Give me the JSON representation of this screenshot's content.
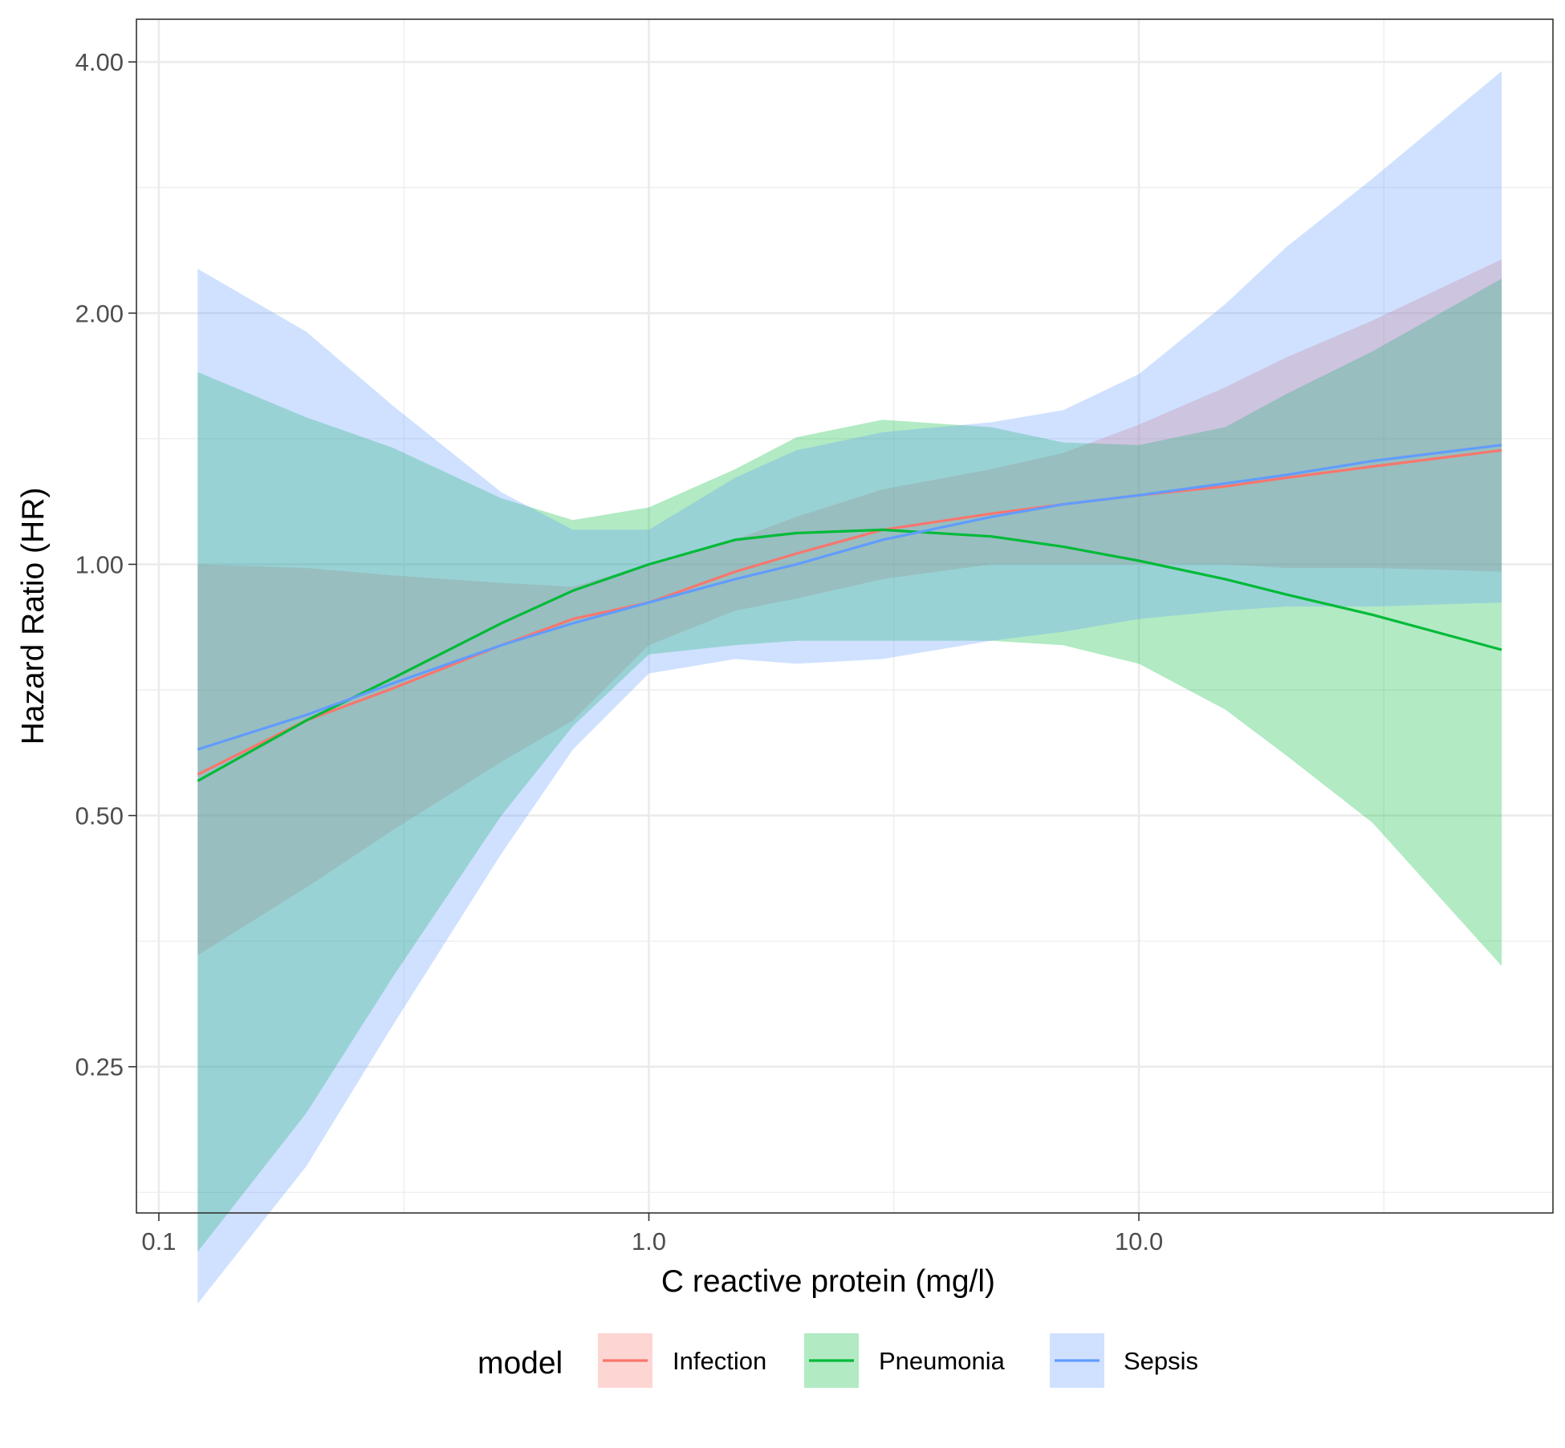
{
  "chart_data": {
    "type": "line",
    "title": "",
    "xlabel": "C reactive protein (mg/l)",
    "ylabel": "Hazard Ratio (HR)",
    "x_scale": "log10",
    "y_scale": "log2",
    "xlim": [
      0.09,
      70
    ],
    "ylim": [
      0.167,
      4.5
    ],
    "x_ticks": [
      0.1,
      1.0,
      10.0
    ],
    "x_tick_labels": [
      "0.1",
      "1.0",
      "10.0"
    ],
    "y_ticks": [
      0.25,
      0.5,
      1.0,
      2.0,
      4.0
    ],
    "y_tick_labels": [
      "0.25",
      "0.50",
      "1.00",
      "2.00",
      "4.00"
    ],
    "grid": true,
    "legend": {
      "title": "model",
      "position": "bottom",
      "entries": [
        "Infection",
        "Pneumonia",
        "Sepsis"
      ]
    },
    "series": [
      {
        "name": "Infection",
        "color": "#F8766D",
        "x": [
          0.12,
          0.2,
          0.3,
          0.5,
          0.7,
          1.0,
          1.5,
          2.0,
          3.0,
          5.0,
          7.0,
          10.0,
          15.0,
          20.0,
          30.0,
          55.0
        ],
        "y": [
          0.56,
          0.65,
          0.71,
          0.8,
          0.86,
          0.9,
          0.98,
          1.03,
          1.1,
          1.15,
          1.18,
          1.21,
          1.24,
          1.27,
          1.31,
          1.37
        ],
        "lower": [
          0.34,
          0.41,
          0.48,
          0.58,
          0.65,
          0.8,
          0.88,
          0.91,
          0.96,
          1.0,
          1.0,
          1.0,
          1.0,
          0.99,
          0.99,
          0.98
        ],
        "upper": [
          1.0,
          0.99,
          0.97,
          0.95,
          0.94,
          1.0,
          1.07,
          1.14,
          1.23,
          1.3,
          1.36,
          1.47,
          1.63,
          1.77,
          1.96,
          2.32
        ]
      },
      {
        "name": "Pneumonia",
        "color": "#00BA38",
        "x": [
          0.12,
          0.2,
          0.3,
          0.5,
          0.7,
          1.0,
          1.5,
          2.0,
          3.0,
          5.0,
          7.0,
          10.0,
          15.0,
          20.0,
          30.0,
          55.0
        ],
        "y": [
          0.55,
          0.65,
          0.73,
          0.85,
          0.93,
          1.0,
          1.07,
          1.09,
          1.1,
          1.08,
          1.05,
          1.01,
          0.96,
          0.92,
          0.87,
          0.79
        ],
        "lower": [
          0.15,
          0.22,
          0.32,
          0.5,
          0.64,
          0.78,
          0.8,
          0.81,
          0.81,
          0.81,
          0.8,
          0.76,
          0.67,
          0.59,
          0.49,
          0.33
        ],
        "upper": [
          1.7,
          1.5,
          1.38,
          1.2,
          1.13,
          1.17,
          1.3,
          1.42,
          1.49,
          1.46,
          1.4,
          1.39,
          1.46,
          1.6,
          1.8,
          2.2
        ]
      },
      {
        "name": "Sepsis",
        "color": "#619CFF",
        "x": [
          0.12,
          0.2,
          0.3,
          0.5,
          0.7,
          1.0,
          1.5,
          2.0,
          3.0,
          5.0,
          7.0,
          10.0,
          15.0,
          20.0,
          30.0,
          55.0
        ],
        "y": [
          0.6,
          0.66,
          0.72,
          0.8,
          0.85,
          0.9,
          0.96,
          1.0,
          1.07,
          1.14,
          1.18,
          1.21,
          1.25,
          1.28,
          1.33,
          1.39
        ],
        "lower": [
          0.13,
          0.19,
          0.28,
          0.45,
          0.6,
          0.74,
          0.77,
          0.76,
          0.77,
          0.81,
          0.83,
          0.86,
          0.88,
          0.89,
          0.89,
          0.9
        ],
        "upper": [
          2.26,
          1.9,
          1.55,
          1.22,
          1.1,
          1.1,
          1.27,
          1.37,
          1.44,
          1.48,
          1.53,
          1.69,
          2.05,
          2.4,
          2.9,
          3.9
        ]
      }
    ]
  }
}
